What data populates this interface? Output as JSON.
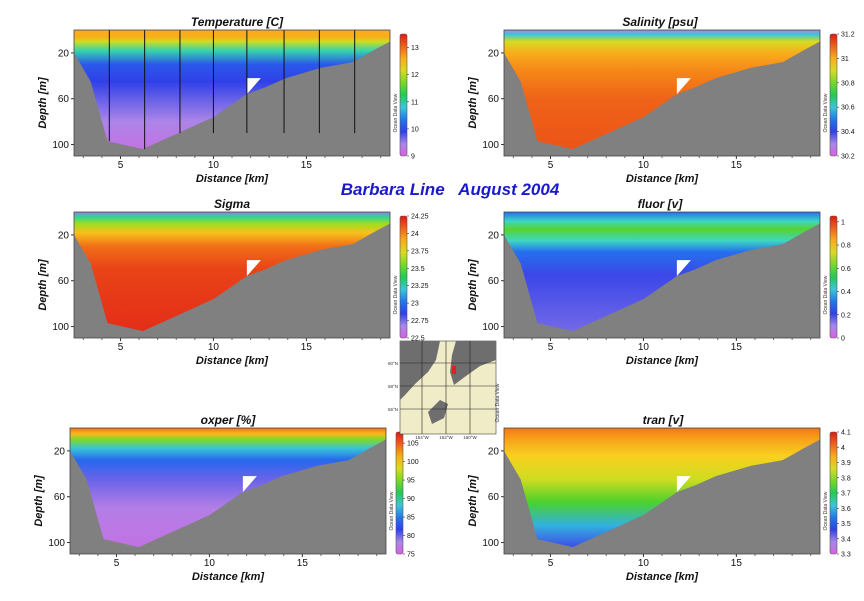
{
  "title": "Barbara Line   August 2004",
  "watermark": "Ocean Data View",
  "colors": {
    "background": "#ffffff",
    "seafloor": "#808080",
    "title": "#1a1acc"
  },
  "map": {
    "lat_labels": [
      "60°N",
      "58°N",
      "56°N"
    ],
    "lon_labels": [
      "154°W",
      "152°W",
      "150°W"
    ],
    "watermark": "Ocean Data View",
    "station_marker_color": "#e02020"
  },
  "chart_data": [
    {
      "id": "temperature",
      "type": "heatmap",
      "title": "Temperature [C]",
      "xlabel": "Distance [km]",
      "ylabel": "Depth [m]",
      "xlim": [
        2.5,
        19.5
      ],
      "ylim": [
        110,
        0
      ],
      "xticks": [
        5,
        10,
        15
      ],
      "yticks": [
        20,
        60,
        100
      ],
      "colorbar": {
        "ticks": [
          9,
          10,
          11,
          12,
          13
        ],
        "min": 9,
        "max": 13.5
      },
      "stations_km": [
        4.4,
        6.3,
        8.2,
        10.0,
        11.8,
        13.8,
        15.7,
        17.6
      ],
      "seafloor_profile": [
        [
          2.5,
          20
        ],
        [
          3.4,
          45
        ],
        [
          4.3,
          97
        ],
        [
          6.2,
          104
        ],
        [
          8.1,
          90
        ],
        [
          10.0,
          76
        ],
        [
          11.8,
          56
        ],
        [
          12.8,
          50
        ],
        [
          13.9,
          42
        ],
        [
          15.8,
          33
        ],
        [
          17.5,
          28
        ],
        [
          18.7,
          17
        ],
        [
          19.5,
          10
        ]
      ],
      "shelf_gap": {
        "x": 11.8,
        "depth_top": 42,
        "depth_bottom": 56
      },
      "layers": [
        {
          "depth": 0,
          "value": 12.6
        },
        {
          "depth": 6,
          "value": 12.6
        },
        {
          "depth": 10,
          "value": 12.1
        },
        {
          "depth": 18,
          "value": 11.0
        },
        {
          "depth": 30,
          "value": 10.1
        },
        {
          "depth": 45,
          "value": 9.9
        },
        {
          "depth": 60,
          "value": 9.7
        },
        {
          "depth": 80,
          "value": 9.4
        },
        {
          "depth": 105,
          "value": 9.2
        }
      ]
    },
    {
      "id": "salinity",
      "type": "heatmap",
      "title": "Salinity [psu]",
      "xlabel": "Distance [km]",
      "ylabel": "Depth [m]",
      "xlim": [
        2.5,
        19.5
      ],
      "ylim": [
        110,
        0
      ],
      "xticks": [
        5,
        10,
        15
      ],
      "yticks": [
        20,
        60,
        100
      ],
      "colorbar": {
        "ticks": [
          30.2,
          30.4,
          30.6,
          30.8,
          31,
          31.2
        ],
        "min": 30.2,
        "max": 31.2
      },
      "seafloor_profile": [
        [
          2.5,
          20
        ],
        [
          3.4,
          45
        ],
        [
          4.3,
          97
        ],
        [
          6.2,
          104
        ],
        [
          8.1,
          90
        ],
        [
          10.0,
          76
        ],
        [
          11.8,
          56
        ],
        [
          12.8,
          50
        ],
        [
          13.9,
          42
        ],
        [
          15.8,
          33
        ],
        [
          17.5,
          28
        ],
        [
          18.7,
          17
        ],
        [
          19.5,
          10
        ]
      ],
      "shelf_gap": {
        "x": 11.8,
        "depth_top": 42,
        "depth_bottom": 56
      },
      "layers": [
        {
          "depth": 0,
          "value": 30.3
        },
        {
          "depth": 4,
          "value": 30.6
        },
        {
          "depth": 10,
          "value": 30.9
        },
        {
          "depth": 20,
          "value": 31.0
        },
        {
          "depth": 35,
          "value": 31.05
        },
        {
          "depth": 60,
          "value": 31.1
        },
        {
          "depth": 105,
          "value": 31.12
        }
      ]
    },
    {
      "id": "sigma",
      "type": "heatmap",
      "title": "Sigma",
      "xlabel": "Distance [km]",
      "ylabel": "Depth [m]",
      "xlim": [
        2.5,
        19.5
      ],
      "ylim": [
        110,
        0
      ],
      "xticks": [
        5,
        10,
        15
      ],
      "yticks": [
        20,
        60,
        100
      ],
      "colorbar": {
        "ticks": [
          22.5,
          22.75,
          23,
          23.25,
          23.5,
          23.75,
          24,
          24.25
        ],
        "min": 22.5,
        "max": 24.25
      },
      "seafloor_profile": [
        [
          2.5,
          20
        ],
        [
          3.4,
          45
        ],
        [
          4.3,
          97
        ],
        [
          6.2,
          104
        ],
        [
          8.1,
          90
        ],
        [
          10.0,
          76
        ],
        [
          11.8,
          56
        ],
        [
          12.8,
          50
        ],
        [
          13.9,
          42
        ],
        [
          15.8,
          33
        ],
        [
          17.5,
          28
        ],
        [
          18.7,
          17
        ],
        [
          19.5,
          10
        ]
      ],
      "shelf_gap": {
        "x": 11.8,
        "depth_top": 42,
        "depth_bottom": 56
      },
      "layers": [
        {
          "depth": 0,
          "value": 22.7
        },
        {
          "depth": 4,
          "value": 23.3
        },
        {
          "depth": 10,
          "value": 23.6
        },
        {
          "depth": 18,
          "value": 23.85
        },
        {
          "depth": 30,
          "value": 24.05
        },
        {
          "depth": 50,
          "value": 24.15
        },
        {
          "depth": 105,
          "value": 24.2
        }
      ]
    },
    {
      "id": "fluor",
      "type": "heatmap",
      "title": "fluor [v]",
      "xlabel": "Distance [km]",
      "ylabel": "Depth [m]",
      "xlim": [
        2.5,
        19.5
      ],
      "ylim": [
        110,
        0
      ],
      "xticks": [
        5,
        10,
        15
      ],
      "yticks": [
        20,
        60,
        100
      ],
      "colorbar": {
        "ticks": [
          0,
          0.2,
          0.4,
          0.6,
          0.8,
          1
        ],
        "min": 0,
        "max": 1.05
      },
      "seafloor_profile": [
        [
          2.5,
          20
        ],
        [
          3.4,
          45
        ],
        [
          4.3,
          97
        ],
        [
          6.2,
          104
        ],
        [
          8.1,
          90
        ],
        [
          10.0,
          76
        ],
        [
          11.8,
          56
        ],
        [
          12.8,
          50
        ],
        [
          13.9,
          42
        ],
        [
          15.8,
          33
        ],
        [
          17.5,
          28
        ],
        [
          18.7,
          17
        ],
        [
          19.5,
          10
        ]
      ],
      "shelf_gap": {
        "x": 11.8,
        "depth_top": 42,
        "depth_bottom": 56
      },
      "layers": [
        {
          "depth": 0,
          "value": 0.3
        },
        {
          "depth": 8,
          "value": 0.45
        },
        {
          "depth": 15,
          "value": 0.6
        },
        {
          "depth": 25,
          "value": 0.45
        },
        {
          "depth": 35,
          "value": 0.3
        },
        {
          "depth": 55,
          "value": 0.2
        },
        {
          "depth": 105,
          "value": 0.15
        }
      ]
    },
    {
      "id": "oxper",
      "type": "heatmap",
      "title": "oxper [%]",
      "xlabel": "Distance [km]",
      "ylabel": "Depth [m]",
      "xlim": [
        2.5,
        19.5
      ],
      "ylim": [
        110,
        0
      ],
      "xticks": [
        5,
        10,
        15
      ],
      "yticks": [
        20,
        60,
        100
      ],
      "colorbar": {
        "ticks": [
          75,
          80,
          85,
          90,
          95,
          100,
          105
        ],
        "min": 75,
        "max": 108
      },
      "seafloor_profile": [
        [
          2.5,
          20
        ],
        [
          3.4,
          45
        ],
        [
          4.3,
          97
        ],
        [
          6.2,
          104
        ],
        [
          8.1,
          90
        ],
        [
          10.0,
          76
        ],
        [
          11.8,
          56
        ],
        [
          12.8,
          50
        ],
        [
          13.9,
          42
        ],
        [
          15.8,
          33
        ],
        [
          17.5,
          28
        ],
        [
          18.7,
          17
        ],
        [
          19.5,
          10
        ]
      ],
      "shelf_gap": {
        "x": 11.8,
        "depth_top": 42,
        "depth_bottom": 56
      },
      "layers": [
        {
          "depth": 0,
          "value": 104
        },
        {
          "depth": 5,
          "value": 101
        },
        {
          "depth": 10,
          "value": 95
        },
        {
          "depth": 18,
          "value": 88
        },
        {
          "depth": 28,
          "value": 84
        },
        {
          "depth": 45,
          "value": 80
        },
        {
          "depth": 70,
          "value": 77.5
        },
        {
          "depth": 105,
          "value": 76.5
        }
      ]
    },
    {
      "id": "tran",
      "type": "heatmap",
      "title": "tran [v]",
      "xlabel": "Distance [km]",
      "ylabel": "Depth [m]",
      "xlim": [
        2.5,
        19.5
      ],
      "ylim": [
        110,
        0
      ],
      "xticks": [
        5,
        10,
        15
      ],
      "yticks": [
        20,
        60,
        100
      ],
      "colorbar": {
        "ticks": [
          3.3,
          3.4,
          3.5,
          3.6,
          3.7,
          3.8,
          3.9,
          4,
          4.1
        ],
        "min": 3.3,
        "max": 4.1
      },
      "seafloor_profile": [
        [
          2.5,
          20
        ],
        [
          3.4,
          45
        ],
        [
          4.3,
          97
        ],
        [
          6.2,
          104
        ],
        [
          8.1,
          90
        ],
        [
          10.0,
          76
        ],
        [
          11.8,
          56
        ],
        [
          12.8,
          50
        ],
        [
          13.9,
          42
        ],
        [
          15.8,
          33
        ],
        [
          17.5,
          28
        ],
        [
          18.7,
          17
        ],
        [
          19.5,
          10
        ]
      ],
      "shelf_gap": {
        "x": 11.8,
        "depth_top": 42,
        "depth_bottom": 56
      },
      "layers": [
        {
          "depth": 0,
          "value": 4.0
        },
        {
          "depth": 10,
          "value": 3.95
        },
        {
          "depth": 25,
          "value": 3.9
        },
        {
          "depth": 45,
          "value": 3.85
        },
        {
          "depth": 65,
          "value": 3.75
        },
        {
          "depth": 85,
          "value": 3.6
        },
        {
          "depth": 105,
          "value": 3.45
        }
      ]
    }
  ]
}
